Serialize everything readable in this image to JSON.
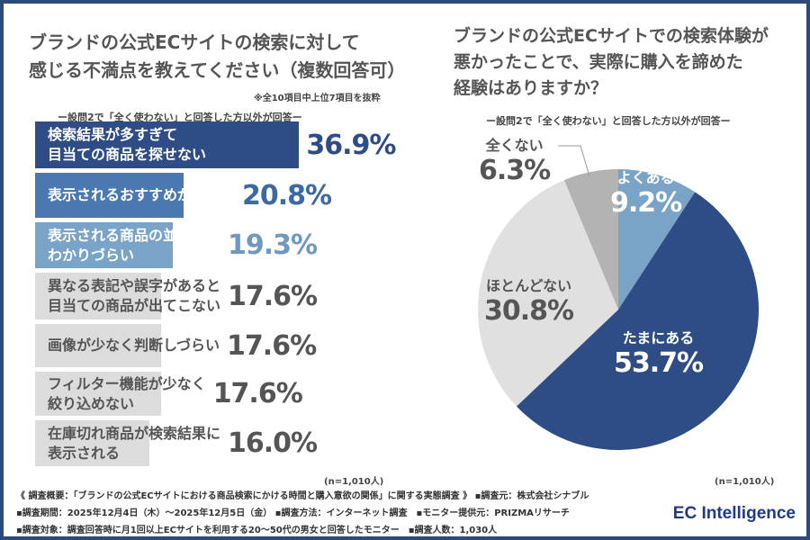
{
  "left": {
    "title_line1": "ブランドの公式ECサイトの検索に対して",
    "title_line2": "感じる不満点を教えてください（複数回答可）",
    "note": "※全10項目中上位7項目を抜粋",
    "subtitle": "ー設問2で「全く使わない」と回答した方以外が回答ー",
    "n": "(n=1,010人)"
  },
  "right": {
    "title_line1": "ブランドの公式ECサイトでの検索体験が",
    "title_line2": "悪かったことで、実際に購入を諦めた",
    "title_line3": "経験はありますか？",
    "subtitle": "ー設問2で「全く使わない」と回答した方以外が回答ー",
    "n": "(n=1,010人)"
  },
  "chart_data": [
    {
      "type": "bar",
      "orientation": "horizontal",
      "categories": [
        "検索結果が多すぎて\n目当ての商品を探せない",
        "表示されるおすすめが的外れ",
        "表示される商品の並び順が\nわかりづらい",
        "異なる表記や誤字があると\n目当ての商品が出てこない",
        "画像が少なく判断しづらい",
        "フィルター機能が少なく\n絞り込めない",
        "在庫切れ商品が検索結果に\n表示される"
      ],
      "values": [
        36.9,
        20.8,
        19.3,
        17.6,
        17.6,
        17.6,
        16.0
      ],
      "value_labels": [
        "36.9%",
        "20.8%",
        "19.3%",
        "17.6%",
        "17.6%",
        "17.6%",
        "16.0%"
      ],
      "colors": [
        "#2e4c85",
        "#4a78b0",
        "#7aa3c8",
        "#dcdcdc",
        "#dcdcdc",
        "#dcdcdc",
        "#dcdcdc"
      ],
      "label_colors": [
        "#ffffff",
        "#ffffff",
        "#ffffff",
        "#555555",
        "#555555",
        "#555555",
        "#555555"
      ],
      "value_colors": [
        "#2e4c85",
        "#3c69a3",
        "#6f98c0",
        "#555555",
        "#555555",
        "#555555",
        "#555555"
      ]
    },
    {
      "type": "pie",
      "start": "top",
      "direction": "clockwise",
      "labels": [
        "よくある",
        "たまにある",
        "ほとんどない",
        "全くない"
      ],
      "values": [
        9.2,
        53.7,
        30.8,
        6.3
      ],
      "value_labels": [
        "9.2%",
        "53.7%",
        "30.8%",
        "6.3%"
      ],
      "colors": [
        "#7aa3c8",
        "#2e4c85",
        "#e0e0e0",
        "#b3b3b3"
      ]
    }
  ],
  "footer": {
    "line1": "《 調査概要：「ブランドの公式ECサイトにおける商品検索にかける時間と購入意欲の関係」に関する実態調査 》 ▪調査元：株式会社シナブル",
    "line2": "▪調査期間：2025年12月4日（木）～2025年12月5日（金） ▪調査方法：インターネット調査　▪モニター提供元：PRIZMAリサーチ",
    "line3": "▪調査対象：調査回答時に月1回以上ECサイトを利用する20～50代の男女と回答したモニター　▪調査人数：1,030人",
    "logo": "EC Intelligence"
  }
}
